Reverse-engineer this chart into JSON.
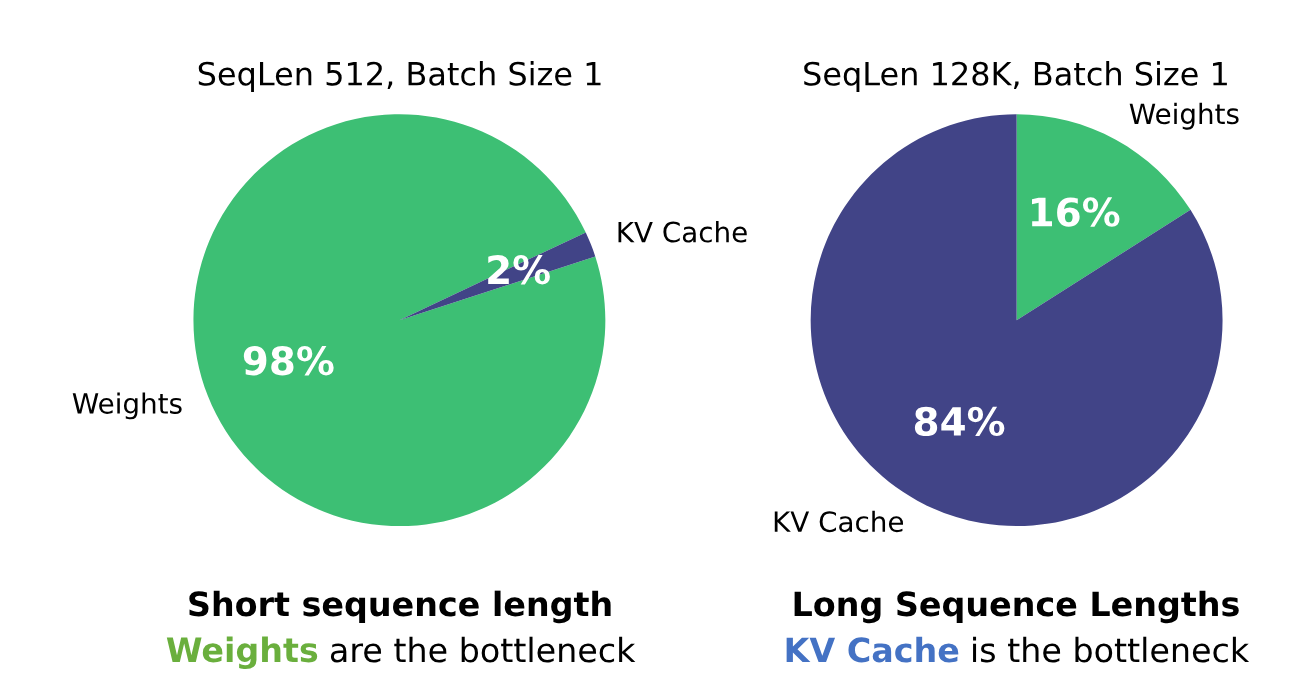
{
  "chart_data": [
    {
      "type": "pie",
      "title": "SeqLen 512, Batch Size 1",
      "categories": [
        "Weights",
        "KV Cache"
      ],
      "values": [
        98,
        2
      ],
      "colors": [
        "#3dbf74",
        "#414487"
      ],
      "value_labels": [
        "98%",
        "2%"
      ],
      "annotations": [
        "Short sequence length",
        "Weights",
        " are the bottleneck"
      ]
    },
    {
      "type": "pie",
      "title": "SeqLen 128K, Batch Size 1",
      "categories": [
        "Weights",
        "KV Cache"
      ],
      "values": [
        16,
        84
      ],
      "colors": [
        "#3dbf74",
        "#414487"
      ],
      "value_labels": [
        "16%",
        "84%"
      ],
      "annotations": [
        "Long Sequence Lengths",
        "KV Cache",
        " is the bottleneck"
      ]
    }
  ]
}
